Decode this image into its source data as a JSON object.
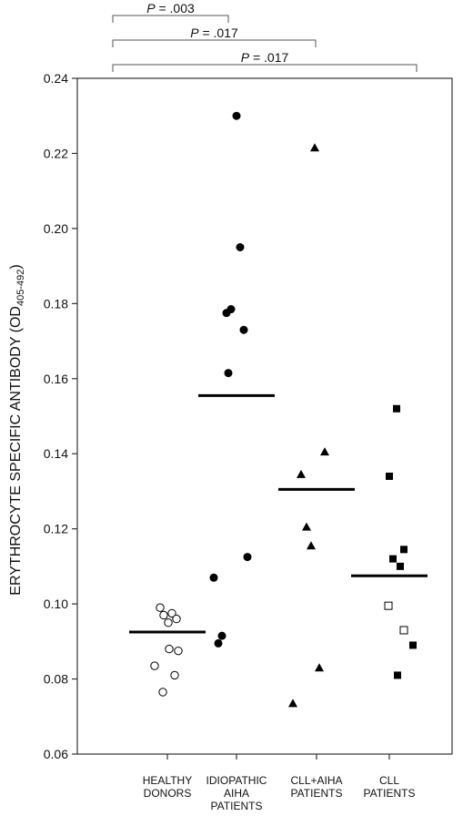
{
  "chart_data": {
    "type": "scatter",
    "ylabel_main": "ERYTHROCYTE SPECIFIC ANTIBODY (OD",
    "ylabel_sub": "405-492",
    "ylabel_end": ")",
    "ylim": [
      0.06,
      0.24
    ],
    "yticks": [
      "0.06",
      "0.08",
      "0.10",
      "0.12",
      "0.14",
      "0.16",
      "0.18",
      "0.20",
      "0.22",
      "0.24"
    ],
    "categories": [
      {
        "lines": [
          "HEALTHY",
          "DONORS"
        ]
      },
      {
        "lines": [
          "IDIOPATHIC",
          "AIHA",
          "PATIENTS"
        ]
      },
      {
        "lines": [
          "CLL+AIHA",
          "PATIENTS"
        ]
      },
      {
        "lines": [
          "CLL",
          "PATIENTS"
        ]
      }
    ],
    "series": [
      {
        "category": 0,
        "marker": "circle-open",
        "points": [
          {
            "j": -0.08,
            "y": 0.099
          },
          {
            "j": -0.04,
            "y": 0.097
          },
          {
            "j": 0.01,
            "y": 0.095
          },
          {
            "j": 0.05,
            "y": 0.0975
          },
          {
            "j": 0.1,
            "y": 0.096
          },
          {
            "j": -0.14,
            "y": 0.0835
          },
          {
            "j": 0.02,
            "y": 0.088
          },
          {
            "j": 0.12,
            "y": 0.0875
          },
          {
            "j": 0.08,
            "y": 0.081
          },
          {
            "j": -0.05,
            "y": 0.0765
          }
        ],
        "mean": 0.0925
      },
      {
        "category": 1,
        "marker": "circle-filled",
        "points": [
          {
            "j": 0.0,
            "y": 0.23
          },
          {
            "j": 0.04,
            "y": 0.195
          },
          {
            "j": -0.11,
            "y": 0.1775
          },
          {
            "j": -0.06,
            "y": 0.1785
          },
          {
            "j": 0.08,
            "y": 0.173
          },
          {
            "j": -0.09,
            "y": 0.1615
          },
          {
            "j": 0.12,
            "y": 0.1125
          },
          {
            "j": -0.25,
            "y": 0.107
          },
          {
            "j": -0.2,
            "y": 0.0895
          },
          {
            "j": -0.16,
            "y": 0.0915
          }
        ],
        "mean": 0.1555
      },
      {
        "category": 2,
        "marker": "triangle-filled",
        "points": [
          {
            "j": -0.02,
            "y": 0.2215
          },
          {
            "j": 0.09,
            "y": 0.1405
          },
          {
            "j": -0.17,
            "y": 0.1345
          },
          {
            "j": -0.11,
            "y": 0.1205
          },
          {
            "j": -0.06,
            "y": 0.1155
          },
          {
            "j": 0.03,
            "y": 0.083
          },
          {
            "j": -0.26,
            "y": 0.0735
          }
        ],
        "mean": 0.1305
      },
      {
        "category": 3,
        "marker": "square",
        "points": [
          {
            "j": 0.08,
            "y": 0.152,
            "filled": true
          },
          {
            "j": 0.0,
            "y": 0.134,
            "filled": true
          },
          {
            "j": 0.16,
            "y": 0.1145,
            "filled": true
          },
          {
            "j": 0.04,
            "y": 0.112,
            "filled": true
          },
          {
            "j": 0.12,
            "y": 0.11,
            "filled": true
          },
          {
            "j": -0.01,
            "y": 0.0995,
            "filled": false
          },
          {
            "j": 0.16,
            "y": 0.093,
            "filled": false
          },
          {
            "j": 0.26,
            "y": 0.089,
            "filled": true
          },
          {
            "j": 0.09,
            "y": 0.081,
            "filled": true
          }
        ],
        "mean": 0.1075
      }
    ],
    "comparisons": [
      {
        "from": 0,
        "to": 1,
        "p_label": "P",
        "p_value": " = .003"
      },
      {
        "from": 0,
        "to": 2,
        "p_label": "P",
        "p_value": " = .017"
      },
      {
        "from": 0,
        "to": 3,
        "p_label": "P",
        "p_value": " = .017"
      }
    ],
    "grid": false,
    "colors": {
      "marker": "#000000",
      "axis": "#333333"
    }
  }
}
